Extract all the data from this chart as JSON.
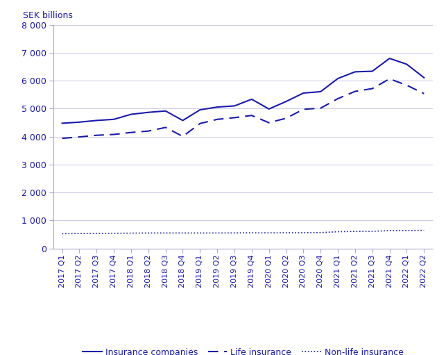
{
  "labels": [
    "2017 Q1",
    "2017 Q2",
    "2017 Q3",
    "2017 Q4",
    "2018 Q1",
    "2018 Q2",
    "2018 Q3",
    "2018 Q4",
    "2019 Q1",
    "2019 Q2",
    "2019 Q3",
    "2019 Q4",
    "2020 Q1",
    "2020 Q2",
    "2020 Q3",
    "2020 Q4",
    "2021 Q1",
    "2021 Q2",
    "2021 Q3",
    "2021 Q4",
    "2022 Q1",
    "2022 Q2"
  ],
  "insurance_companies": [
    4480,
    4520,
    4580,
    4620,
    4800,
    4870,
    4920,
    4580,
    4960,
    5060,
    5100,
    5340,
    4990,
    5260,
    5560,
    5610,
    6080,
    6320,
    6340,
    6800,
    6590,
    6110
  ],
  "life_insurance": [
    3940,
    3990,
    4050,
    4080,
    4150,
    4200,
    4330,
    4010,
    4470,
    4620,
    4680,
    4760,
    4500,
    4660,
    4980,
    5020,
    5360,
    5620,
    5720,
    6070,
    5840,
    5540
  ],
  "non_life_insurance": [
    530,
    535,
    540,
    545,
    550,
    555,
    555,
    555,
    555,
    555,
    558,
    560,
    560,
    562,
    565,
    568,
    600,
    610,
    615,
    640,
    645,
    648
  ],
  "line_color": "#1a1aaa",
  "top_label": "SEK billions",
  "ylim": [
    0,
    8000
  ],
  "yticks": [
    0,
    1000,
    2000,
    3000,
    4000,
    5000,
    6000,
    7000,
    8000
  ],
  "legend_labels": [
    "Insurance companies",
    "Life insurance",
    "Non-life insurance"
  ],
  "background_color": "#ffffff",
  "grid_color": "#c8c8e8"
}
